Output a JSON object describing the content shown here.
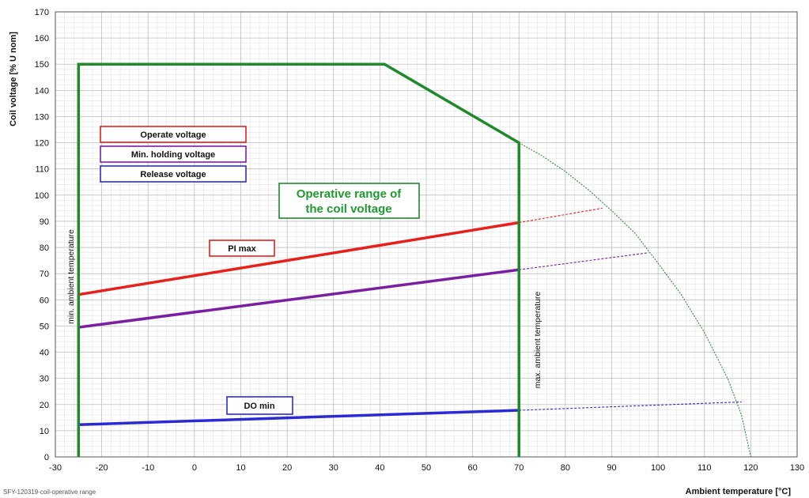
{
  "chart_data": {
    "type": "line",
    "xlabel": "Ambient temperature [°C]",
    "ylabel": "Coil voltage [% U nom]",
    "xlim": [
      -30,
      130
    ],
    "ylim": [
      0,
      170
    ],
    "x_ticks": [
      -30,
      -20,
      -10,
      0,
      10,
      20,
      30,
      40,
      50,
      60,
      70,
      80,
      90,
      100,
      110,
      120,
      130
    ],
    "y_ticks": [
      0,
      10,
      20,
      30,
      40,
      50,
      60,
      70,
      80,
      90,
      100,
      110,
      120,
      130,
      140,
      150,
      160,
      170
    ],
    "grid": true,
    "colors": {
      "operate": "#e8201c",
      "holding": "#7b1fa2",
      "release": "#2b2bd6",
      "range": "#1e8a2a",
      "limit_curve": "#2e8b3e"
    },
    "series": [
      {
        "name": "Operate voltage",
        "color_key": "operate",
        "x": [
          -25,
          70
        ],
        "y": [
          62,
          89.5
        ]
      },
      {
        "name": "Operate voltage",
        "color_key": "operate",
        "dashed": true,
        "x": [
          70,
          88
        ],
        "y": [
          89.5,
          95
        ]
      },
      {
        "name": "Min. holding voltage",
        "color_key": "holding",
        "x": [
          -25,
          70
        ],
        "y": [
          49.5,
          71.5
        ]
      },
      {
        "name": "Min. holding voltage",
        "color_key": "holding",
        "dashed": true,
        "x": [
          70,
          98
        ],
        "y": [
          71.5,
          78
        ]
      },
      {
        "name": "Release voltage",
        "color_key": "release",
        "x": [
          -25,
          70
        ],
        "y": [
          12.3,
          17.8
        ]
      },
      {
        "name": "Release voltage",
        "color_key": "release",
        "dashed": true,
        "x": [
          70,
          118
        ],
        "y": [
          17.8,
          21
        ]
      }
    ],
    "operative_range": {
      "x": [
        -25,
        -25,
        41,
        70,
        70
      ],
      "y": [
        0,
        150,
        150,
        120,
        0
      ]
    },
    "limit_curve": {
      "x": [
        70,
        75,
        80,
        85,
        90,
        95,
        100,
        105,
        110,
        115,
        118,
        120
      ],
      "y": [
        120,
        115,
        109,
        102,
        94,
        85.5,
        74,
        62,
        47.5,
        30,
        16,
        0
      ]
    },
    "annotations": {
      "range_title_line1": "Operative range of",
      "range_title_line2": "the coil voltage",
      "pi_max": "PI max",
      "do_min": "DO min",
      "min_ambient": "min. ambient temperature",
      "max_ambient": "max. ambient temperature"
    },
    "legend": {
      "position": "upper-left",
      "entries": [
        {
          "label": "Operate voltage",
          "color_key": "operate"
        },
        {
          "label": "Min. holding voltage",
          "color_key": "holding"
        },
        {
          "label": "Release voltage",
          "color_key": "release"
        }
      ]
    }
  },
  "footer": "SFY-120319-coil-operative range"
}
